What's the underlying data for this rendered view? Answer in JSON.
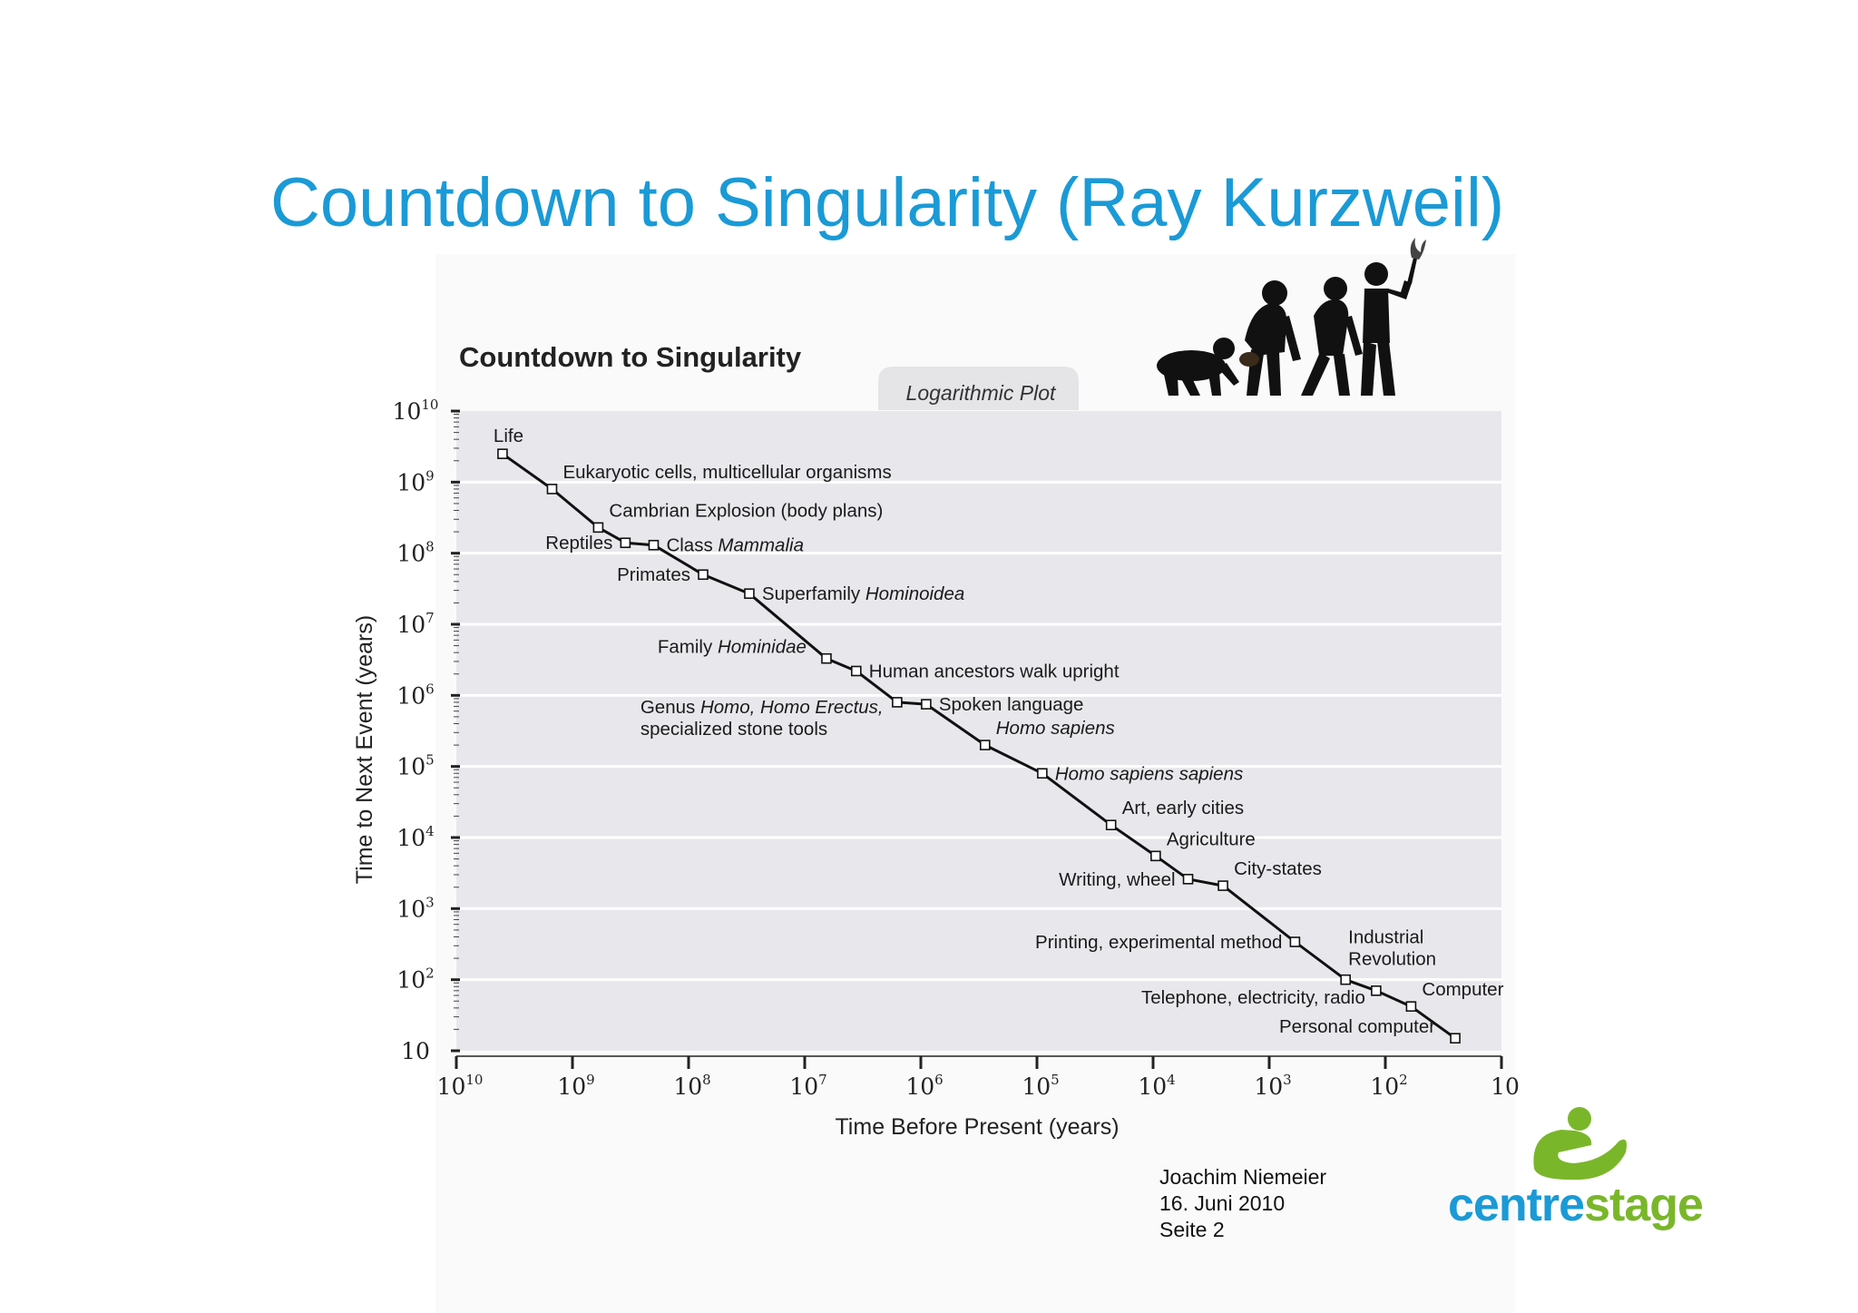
{
  "slide": {
    "title": "Countdown to Singularity (Ray Kurzweil)",
    "footer": {
      "author": "Joachim Niemeier",
      "date": "16. Juni 2010",
      "page": "Seite 2"
    },
    "logo": {
      "part1": "centre",
      "part2": "stage",
      "color1": "#1a9ad6",
      "color2": "#7ab62a"
    },
    "illustration": "human-evolution-silhouettes-icon"
  },
  "chart_data": {
    "type": "scatter",
    "title": "Countdown to Singularity",
    "subtitle": "Logarithmic Plot",
    "xlabel": "Time Before Present (years)",
    "ylabel": "Time to Next Event (years)",
    "xscale": "log",
    "yscale": "log",
    "xlim": [
      10000000000,
      10
    ],
    "ylim": [
      10,
      10000000000
    ],
    "x_reversed": true,
    "grid": true,
    "connected": true,
    "x_ticks": [
      {
        "base": "10",
        "exp": "10",
        "value": 10000000000
      },
      {
        "base": "10",
        "exp": "9",
        "value": 1000000000
      },
      {
        "base": "10",
        "exp": "8",
        "value": 100000000
      },
      {
        "base": "10",
        "exp": "7",
        "value": 10000000
      },
      {
        "base": "10",
        "exp": "6",
        "value": 1000000
      },
      {
        "base": "10",
        "exp": "5",
        "value": 100000
      },
      {
        "base": "10",
        "exp": "4",
        "value": 10000
      },
      {
        "base": "10",
        "exp": "3",
        "value": 1000
      },
      {
        "base": "10",
        "exp": "2",
        "value": 100
      },
      {
        "base": "10",
        "exp": "",
        "value": 10
      }
    ],
    "y_ticks": [
      {
        "base": "10",
        "exp": "10",
        "value": 10000000000
      },
      {
        "base": "10",
        "exp": "9",
        "value": 1000000000
      },
      {
        "base": "10",
        "exp": "8",
        "value": 100000000
      },
      {
        "base": "10",
        "exp": "7",
        "value": 10000000
      },
      {
        "base": "10",
        "exp": "6",
        "value": 1000000
      },
      {
        "base": "10",
        "exp": "5",
        "value": 100000
      },
      {
        "base": "10",
        "exp": "4",
        "value": 10000
      },
      {
        "base": "10",
        "exp": "3",
        "value": 1000
      },
      {
        "base": "10",
        "exp": "2",
        "value": 100
      },
      {
        "base": "10",
        "exp": "",
        "value": 10
      }
    ],
    "points": [
      {
        "x": 4000000000,
        "y": 2500000000,
        "label": [
          "Life"
        ],
        "anchor": "above"
      },
      {
        "x": 1500000000,
        "y": 800000000,
        "label": [
          "Eukaryotic cells, multicellular organisms"
        ],
        "anchor": "right-up"
      },
      {
        "x": 600000000,
        "y": 230000000,
        "label": [
          "Cambrian Explosion (body plans)"
        ],
        "anchor": "right-up"
      },
      {
        "x": 350000000,
        "y": 140000000,
        "label": [
          "Reptiles"
        ],
        "anchor": "left"
      },
      {
        "x": 200000000,
        "y": 130000000,
        "label": [
          "Class ",
          "Mammalia"
        ],
        "italic": [
          false,
          true
        ],
        "anchor": "right"
      },
      {
        "x": 75000000,
        "y": 50000000,
        "label": [
          "Primates"
        ],
        "anchor": "left"
      },
      {
        "x": 30000000,
        "y": 27000000,
        "label": [
          "Superfamily ",
          "Hominoidea"
        ],
        "italic": [
          false,
          true
        ],
        "anchor": "right"
      },
      {
        "x": 6500000,
        "y": 3300000,
        "label": [
          "Family ",
          "Hominidae"
        ],
        "italic": [
          false,
          true
        ],
        "anchor": "left-up"
      },
      {
        "x": 3600000,
        "y": 2200000,
        "label": [
          "Human ancestors walk upright"
        ],
        "anchor": "right"
      },
      {
        "x": 1600000,
        "y": 800000,
        "label": [
          [
            "Genus ",
            "Homo, Homo Erectus,"
          ],
          [
            "specialized stone tools"
          ]
        ],
        "italic": [
          [
            false,
            true
          ],
          [
            false
          ]
        ],
        "anchor": "left-block"
      },
      {
        "x": 900000,
        "y": 750000,
        "label": [
          "Spoken language"
        ],
        "anchor": "right"
      },
      {
        "x": 280000,
        "y": 200000,
        "label": [
          "Homo sapiens"
        ],
        "italic": [
          true
        ],
        "anchor": "right-up"
      },
      {
        "x": 90000,
        "y": 80000,
        "label": [
          "Homo sapiens sapiens"
        ],
        "italic": [
          true
        ],
        "anchor": "right"
      },
      {
        "x": 23000,
        "y": 15000,
        "label": [
          "Art, early cities"
        ],
        "anchor": "right-up"
      },
      {
        "x": 9500,
        "y": 5500,
        "label": [
          "Agriculture"
        ],
        "anchor": "right-up"
      },
      {
        "x": 5000,
        "y": 2600,
        "label": [
          "Writing, wheel"
        ],
        "anchor": "left"
      },
      {
        "x": 2500,
        "y": 2100,
        "label": [
          "City-states"
        ],
        "anchor": "right-up"
      },
      {
        "x": 600,
        "y": 340,
        "label": [
          "Printing, experimental method"
        ],
        "anchor": "left"
      },
      {
        "x": 220,
        "y": 100,
        "label": [
          [
            "Industrial"
          ],
          [
            "Revolution"
          ]
        ],
        "anchor": "right-block"
      },
      {
        "x": 120,
        "y": 70,
        "label": [
          "Telephone,  electricity, radio"
        ],
        "anchor": "left-down"
      },
      {
        "x": 60,
        "y": 42,
        "label": [
          "Computer"
        ],
        "anchor": "right-up"
      },
      {
        "x": 25,
        "y": 15,
        "label": [
          "Personal computer"
        ],
        "anchor": "left-up"
      }
    ]
  }
}
